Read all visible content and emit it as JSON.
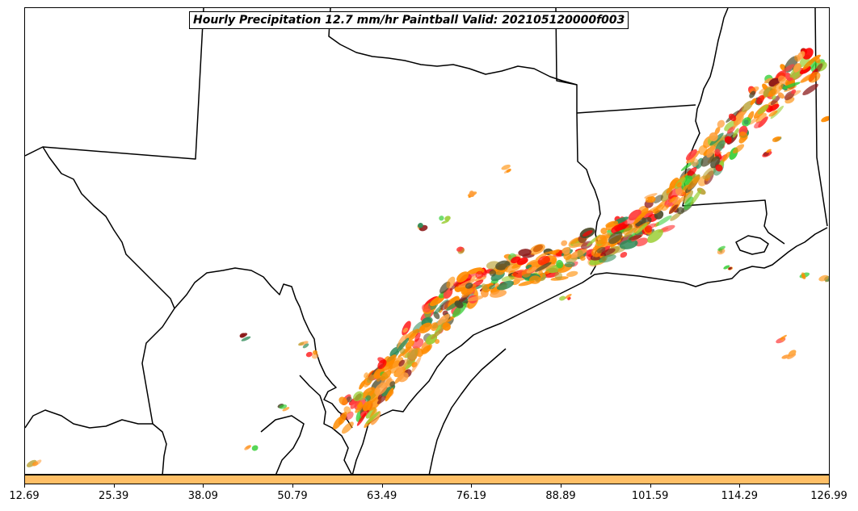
{
  "title": "Hourly Precipitation 12.7 mm/hr Paintball Valid: 202105120000f003",
  "colors": {
    "colorbar_fill": "#ffbf66",
    "boundary": "#000000",
    "paintball_palette": [
      "#ff8c00",
      "#ff0000",
      "#ff4040",
      "#32cd32",
      "#2e8b57",
      "#8b1a1a",
      "#9acd32",
      "#b8a030",
      "#ffa040",
      "#4b4b2b"
    ]
  },
  "colorbar": {
    "tick_labels": [
      "12.69",
      "25.39",
      "38.09",
      "50.79",
      "63.49",
      "76.19",
      "88.89",
      "101.59",
      "114.29",
      "126.99"
    ],
    "min": 12.69,
    "max": 126.99
  }
}
